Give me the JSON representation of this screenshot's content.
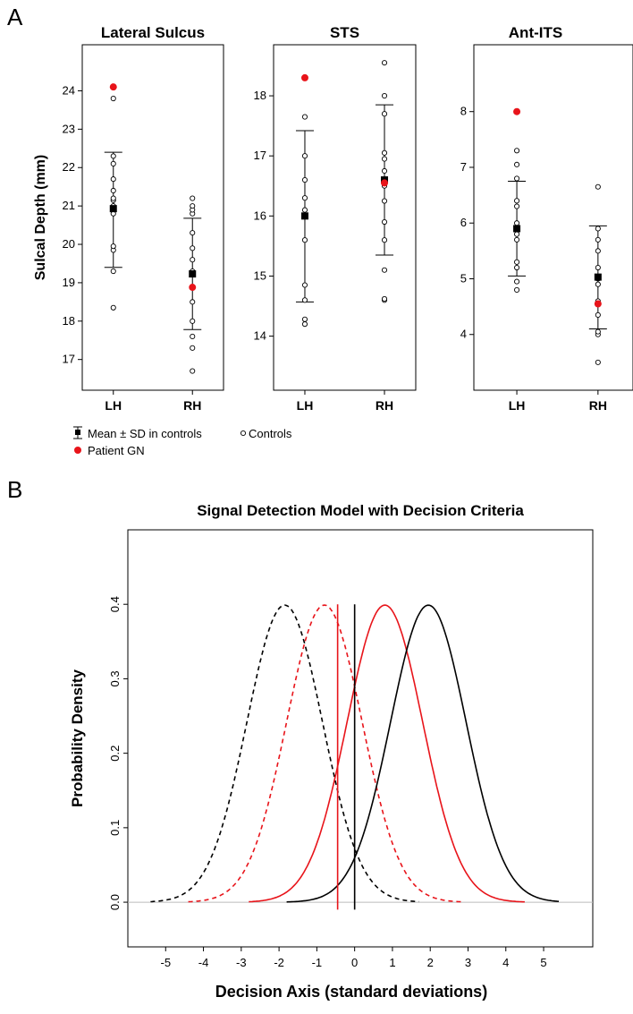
{
  "panels": {
    "a_letter": "A",
    "b_letter": "B"
  },
  "legend": {
    "mean_sd": "Mean ± SD in controls",
    "controls": "Controls",
    "patient": "Patient GN"
  },
  "colors": {
    "patient": "#e8141a",
    "control": "#000000"
  },
  "chart_data": [
    {
      "type": "scatter",
      "title": "Lateral Sulcus",
      "ylabel": "Sulcal Depth (mm)",
      "categories": [
        "LH",
        "RH"
      ],
      "ylim": [
        16.2,
        25.2
      ],
      "yticks": [
        17,
        18,
        19,
        20,
        21,
        22,
        23,
        24
      ],
      "controls": [
        [
          18.35,
          19.3,
          19.85,
          19.95,
          20.8,
          21.0,
          21.15,
          21.2,
          21.4,
          21.7,
          22.1,
          22.3,
          23.8
        ],
        [
          16.7,
          17.3,
          17.6,
          18.0,
          18.5,
          19.3,
          19.6,
          19.9,
          20.3,
          20.8,
          20.9,
          21.0,
          21.2
        ]
      ],
      "mean": [
        20.93,
        19.23
      ],
      "sd_low": [
        19.4,
        17.78
      ],
      "sd_high": [
        22.4,
        20.68
      ],
      "patient": [
        24.1,
        18.88
      ]
    },
    {
      "type": "scatter",
      "title": "STS",
      "ylabel": "",
      "categories": [
        "LH",
        "RH"
      ],
      "ylim": [
        13.1,
        18.85
      ],
      "yticks": [
        14,
        15,
        16,
        17,
        18
      ],
      "controls": [
        [
          14.2,
          14.28,
          14.6,
          14.85,
          15.6,
          16.1,
          16.3,
          16.6,
          17.0,
          17.65
        ],
        [
          14.6,
          14.62,
          15.1,
          15.6,
          15.9,
          16.25,
          16.5,
          16.75,
          16.95,
          17.05,
          17.7,
          18.0,
          18.55
        ]
      ],
      "mean": [
        16.0,
        16.6
      ],
      "sd_low": [
        14.57,
        15.35
      ],
      "sd_high": [
        17.42,
        17.85
      ],
      "patient": [
        18.3,
        16.55
      ]
    },
    {
      "type": "scatter",
      "title": "Ant-ITS",
      "ylabel": "",
      "categories": [
        "LH",
        "RH"
      ],
      "ylim": [
        3.0,
        9.2
      ],
      "yticks": [
        4,
        5,
        6,
        7,
        8
      ],
      "controls": [
        [
          4.8,
          4.95,
          5.2,
          5.3,
          5.7,
          5.8,
          6.0,
          6.3,
          6.4,
          6.8,
          7.05,
          7.3
        ],
        [
          3.5,
          4.0,
          4.05,
          4.35,
          4.6,
          4.9,
          5.0,
          5.2,
          5.5,
          5.7,
          5.9,
          6.65
        ]
      ],
      "mean": [
        5.9,
        5.03
      ],
      "sd_low": [
        5.05,
        4.1
      ],
      "sd_high": [
        6.75,
        5.95
      ],
      "patient": [
        8.0,
        4.55
      ]
    },
    {
      "type": "line",
      "title": "Signal Detection Model with Decision Criteria",
      "xlabel": "Decision Axis (standard deviations)",
      "ylabel": "Probability Density",
      "xlim": [
        -6.0,
        6.3
      ],
      "ylim": [
        -0.06,
        0.5
      ],
      "xticks": [
        -5,
        -4,
        -3,
        -2,
        -1,
        0,
        1,
        2,
        3,
        4,
        5
      ],
      "yticks": [
        0.0,
        0.1,
        0.2,
        0.3,
        0.4
      ],
      "series": [
        {
          "color": "#000000",
          "dashed": true,
          "mean": -1.85,
          "sd": 1.0,
          "range": [
            -5.4,
            1.7
          ]
        },
        {
          "color": "#e8141a",
          "dashed": true,
          "mean": -0.8,
          "sd": 1.0,
          "range": [
            -4.4,
            2.9
          ]
        },
        {
          "color": "#e8141a",
          "dashed": false,
          "mean": 0.8,
          "sd": 1.0,
          "range": [
            -2.8,
            4.5
          ]
        },
        {
          "color": "#000000",
          "dashed": false,
          "mean": 1.95,
          "sd": 1.0,
          "range": [
            -1.8,
            5.4
          ]
        }
      ],
      "criteria": [
        {
          "x": -0.45,
          "color": "#e8141a"
        },
        {
          "x": 0.0,
          "color": "#000000"
        }
      ]
    }
  ]
}
